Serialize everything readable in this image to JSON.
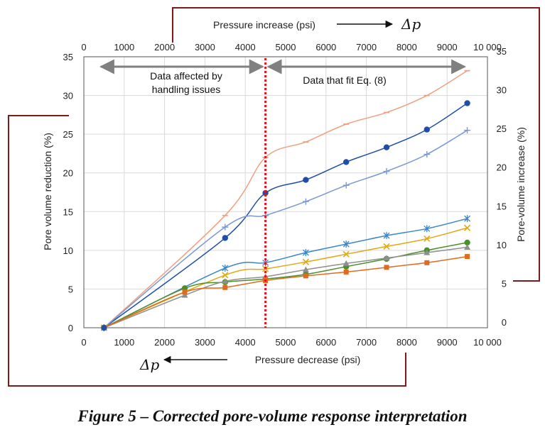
{
  "chart_data": {
    "type": "line",
    "title": "",
    "xlabel_bottom": "Pressure decrease (psi)",
    "xlabel_top": "Pressure increase (psi)",
    "ylabel_left": "Pore volume reduction (%)",
    "ylabel_right": "Pore-volume increase (%)",
    "delta_symbol": "Δp",
    "xlim": [
      0,
      10000
    ],
    "ylim_left": [
      0,
      35
    ],
    "ylim_right": [
      0,
      35
    ],
    "x_ticks": [
      0,
      1000,
      2000,
      3000,
      4000,
      5000,
      6000,
      7000,
      8000,
      9000,
      10000
    ],
    "x_tick_labels": [
      "0",
      "1000",
      "2000",
      "3000",
      "4000",
      "5000",
      "6000",
      "7000",
      "8000",
      "9000",
      "10 000"
    ],
    "y_ticks": [
      0,
      5,
      10,
      15,
      20,
      25,
      30,
      35
    ],
    "y_tick_labels": [
      "0",
      "5",
      "10",
      "15",
      "20",
      "25",
      "30",
      "35"
    ],
    "grid": true,
    "divider_x": 4500,
    "annotations": {
      "left_region": [
        "Data affected by",
        "handling issues"
      ],
      "right_region": "Data that fit Eq. (8)"
    },
    "caption": "Figure 5 – Corrected pore-volume response interpretation",
    "colors": {
      "border": "#7f1a1a",
      "divider": "#e0141e",
      "arrow": "#808080",
      "grid": "#d9d9d9"
    },
    "series": [
      {
        "color": "#f0a080",
        "marker": "dash",
        "x": [
          500,
          3500,
          4500,
          5500,
          6500,
          7500,
          8500,
          9500
        ],
        "values": [
          0,
          14.5,
          22.0,
          24.0,
          26.3,
          27.8,
          30.0,
          33.2
        ]
      },
      {
        "color": "#1f4ea8",
        "marker": "circle",
        "x": [
          500,
          3500,
          4500,
          5500,
          6500,
          7500,
          8500,
          9500
        ],
        "values": [
          0,
          11.6,
          17.4,
          19.1,
          21.4,
          23.3,
          25.6,
          29.0
        ]
      },
      {
        "color": "#7b97d6",
        "marker": "plus",
        "x": [
          500,
          3500,
          4500,
          5500,
          6500,
          7500,
          8500,
          9500
        ],
        "values": [
          0,
          13.0,
          14.5,
          16.3,
          18.4,
          20.2,
          22.4,
          25.5
        ]
      },
      {
        "color": "#3a87c8",
        "marker": "star",
        "x": [
          500,
          3500,
          4500,
          5500,
          6500,
          7500,
          8500,
          9500
        ],
        "values": [
          0,
          7.7,
          8.4,
          9.7,
          10.8,
          11.9,
          12.8,
          14.1
        ]
      },
      {
        "color": "#e2a811",
        "marker": "x",
        "x": [
          500,
          3500,
          4500,
          5500,
          6500,
          7500,
          8500,
          9500
        ],
        "values": [
          0,
          6.8,
          7.6,
          8.5,
          9.5,
          10.5,
          11.5,
          12.9
        ]
      },
      {
        "color": "#4a8f2a",
        "marker": "circle",
        "x": [
          500,
          2500,
          3500,
          4500,
          5500,
          6500,
          7500,
          8500,
          9500
        ],
        "values": [
          0,
          5.1,
          5.9,
          6.3,
          6.9,
          7.9,
          8.9,
          10.0,
          11.0
        ]
      },
      {
        "color": "#8f8f8f",
        "marker": "triangle",
        "x": [
          500,
          2500,
          3500,
          4500,
          5500,
          6500,
          7500,
          8500,
          9500
        ],
        "values": [
          0,
          4.2,
          6.0,
          6.6,
          7.5,
          8.3,
          9.0,
          9.7,
          10.4
        ]
      },
      {
        "color": "#e06a1e",
        "marker": "square",
        "x": [
          500,
          2500,
          3500,
          4500,
          5500,
          6500,
          7500,
          8500,
          9500
        ],
        "values": [
          0,
          4.6,
          5.2,
          6.1,
          6.7,
          7.2,
          7.8,
          8.4,
          9.2
        ]
      }
    ]
  }
}
